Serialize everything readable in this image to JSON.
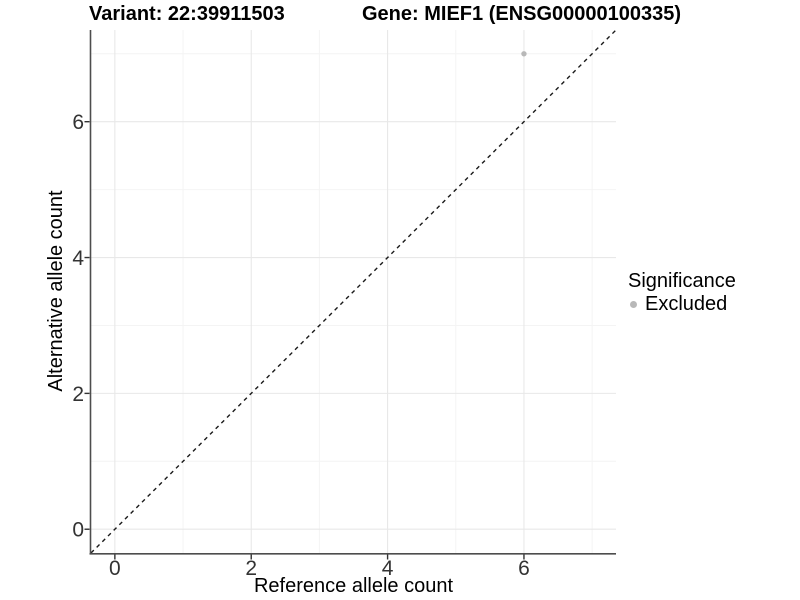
{
  "figure": {
    "title_left": "Variant: 22:39911503",
    "title_right": "Gene: MIEF1 (ENSG00000100335)"
  },
  "chart_data": {
    "type": "scatter",
    "title": "Variant: 22:39911503 — Gene: MIEF1 (ENSG00000100335)",
    "xlabel": "Reference allele count",
    "ylabel": "Alternative allele count",
    "xlim": [
      -0.35,
      7.35
    ],
    "ylim": [
      -0.35,
      7.35
    ],
    "x_major_ticks": [
      0,
      2,
      4,
      6
    ],
    "y_major_ticks": [
      0,
      2,
      4,
      6
    ],
    "x_minor_ticks": [
      1,
      3,
      5,
      7
    ],
    "y_minor_ticks": [
      1,
      3,
      5,
      7
    ],
    "grid": "major+minor",
    "reference_line": {
      "kind": "identity (y = x)",
      "style": "dashed",
      "color": "#1a1a1a",
      "from": [
        -0.35,
        -0.35
      ],
      "to": [
        7.35,
        7.35
      ]
    },
    "series": [
      {
        "name": "Excluded",
        "color": "#b8b8b8",
        "marker": "circle",
        "points": [
          {
            "x": 6,
            "y": 7
          }
        ]
      }
    ],
    "legend": {
      "title": "Significance",
      "position": "right",
      "items": [
        {
          "label": "Excluded",
          "color": "#b8b8b8",
          "marker": "circle"
        }
      ]
    }
  },
  "colors": {
    "background": "#ffffff",
    "axis_line": "#4d4d4d",
    "tick_mark": "#333333",
    "tick_text": "#333333",
    "grid_major": "#e8e8e8",
    "grid_minor": "#f4f4f4"
  }
}
